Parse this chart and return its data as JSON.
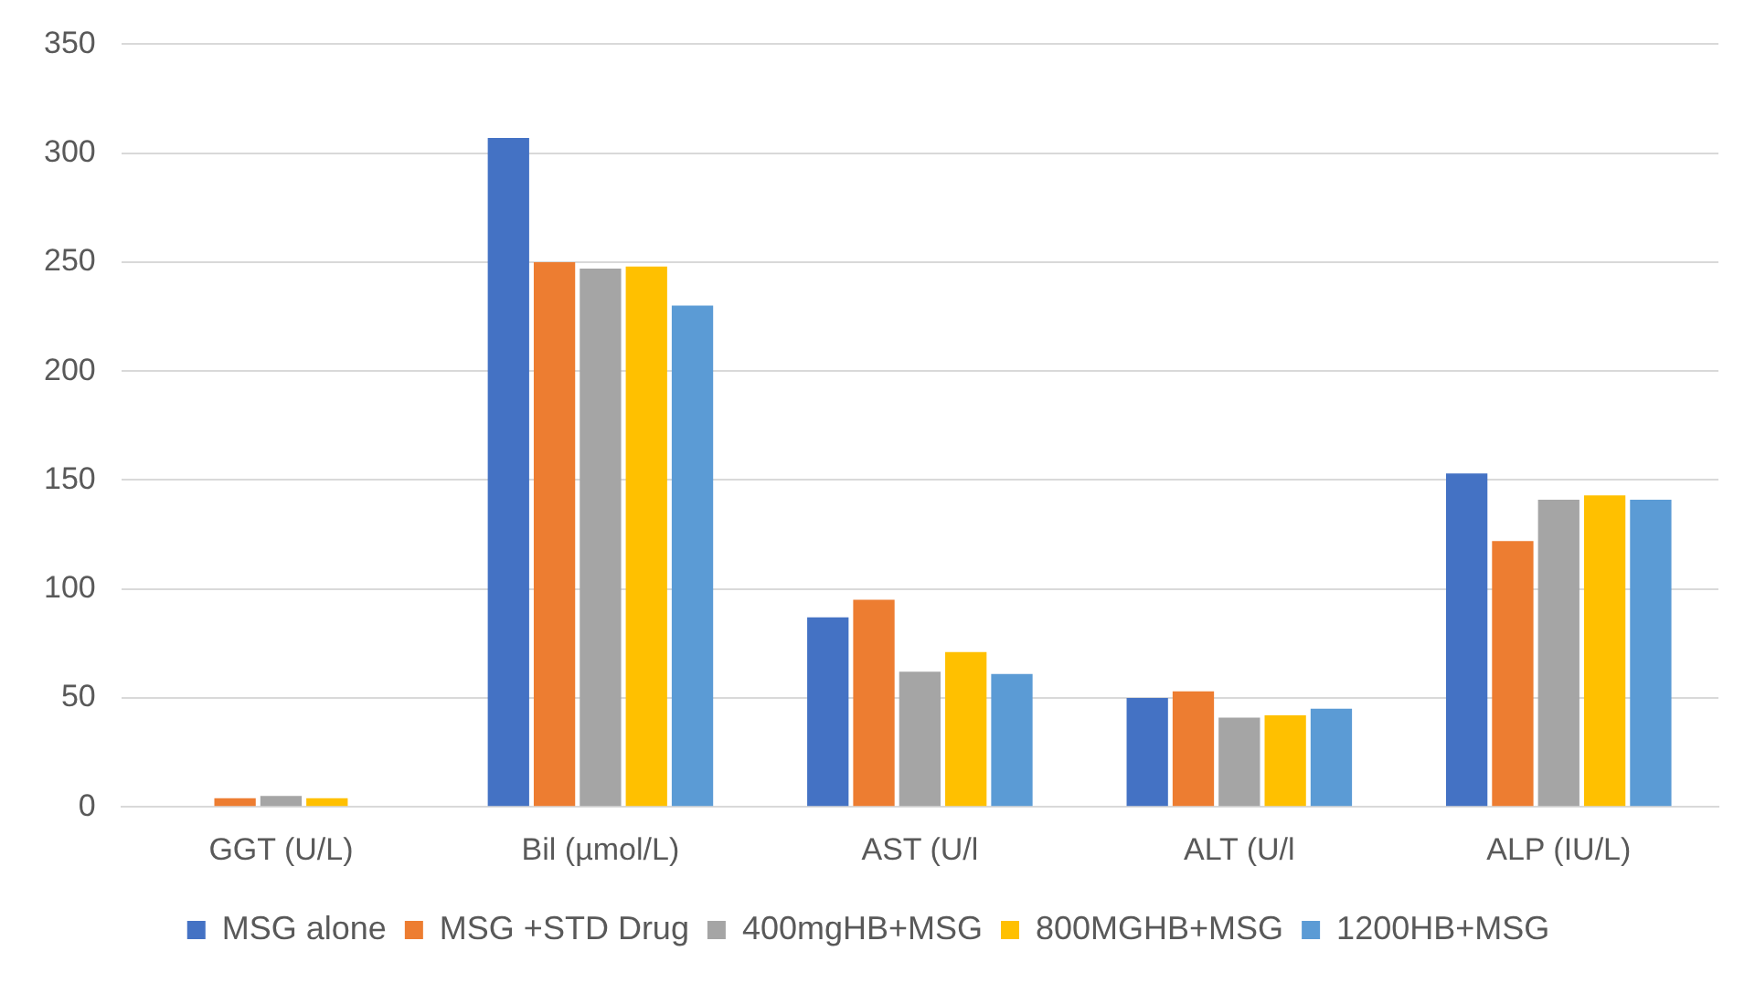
{
  "chart_data": {
    "type": "bar",
    "categories": [
      "GGT (U/L)",
      "Bil (µmol/L)",
      "AST (U/l",
      "ALT (U/l",
      "ALP (IU/L)"
    ],
    "series": [
      {
        "name": "MSG alone",
        "color": "#4472c4",
        "values": [
          0,
          307,
          87,
          50,
          153
        ]
      },
      {
        "name": "MSG +STD Drug",
        "color": "#ed7d31",
        "values": [
          4,
          250,
          95,
          53,
          122
        ]
      },
      {
        "name": "400mgHB+MSG",
        "color": "#a5a5a5",
        "values": [
          5,
          247,
          62,
          41,
          141
        ]
      },
      {
        "name": "800MGHB+MSG",
        "color": "#ffc000",
        "values": [
          4,
          248,
          71,
          42,
          143
        ]
      },
      {
        "name": "1200HB+MSG",
        "color": "#5b9bd5",
        "values": [
          0,
          230,
          61,
          45,
          141
        ]
      }
    ],
    "ylim": [
      0,
      350
    ],
    "yticks": [
      0,
      50,
      100,
      150,
      200,
      250,
      300,
      350
    ],
    "grid": "y",
    "legend": "bottom"
  }
}
